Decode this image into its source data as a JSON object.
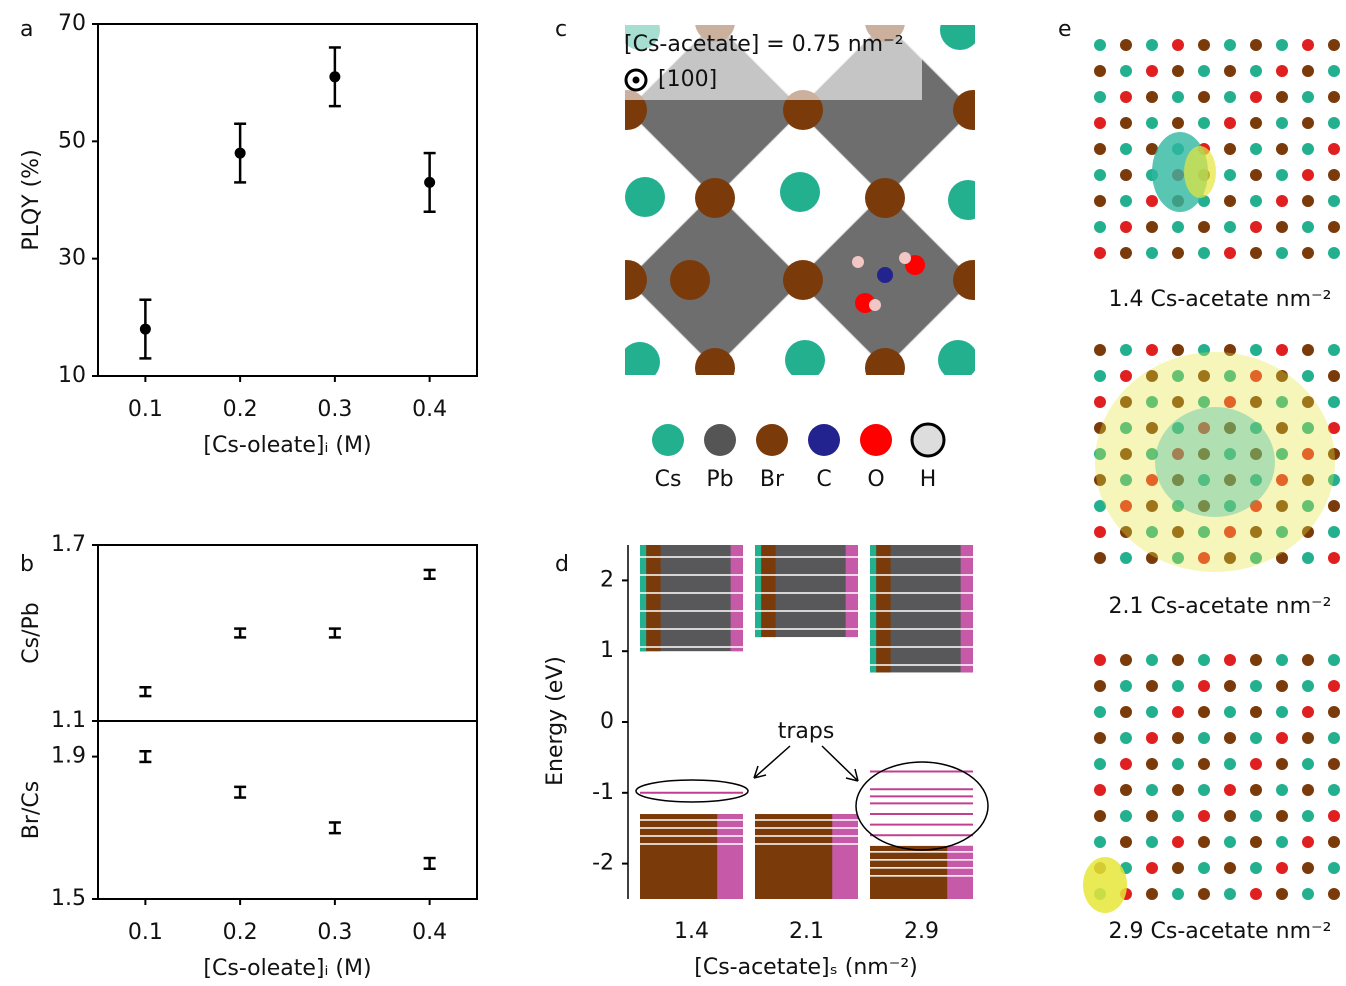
{
  "panel_labels": [
    "a",
    "b",
    "c",
    "d",
    "e"
  ],
  "chart_data": [
    {
      "type": "errorbar",
      "markers": true,
      "color": "#000000",
      "ylabel": "PLQY (%)",
      "xlabel": "[Cs-oleate]ᵢ (M)",
      "x": [
        0.1,
        0.2,
        0.3,
        0.4
      ],
      "values": [
        18,
        48,
        61,
        43
      ],
      "errors": [
        5,
        5,
        5,
        5
      ],
      "xlim": [
        0.05,
        0.45
      ],
      "xticks": [
        0.1,
        0.2,
        0.3,
        0.4
      ],
      "ylim": [
        10,
        70
      ],
      "yticks": [
        10,
        30,
        50,
        70
      ]
    },
    {
      "type": "errorbar",
      "markers": false,
      "color": "#000000",
      "ylabel": "Cs/Pb",
      "x": [
        0.1,
        0.2,
        0.3,
        0.4
      ],
      "values": [
        1.2,
        1.4,
        1.4,
        1.6
      ],
      "errors": [
        0.015,
        0.015,
        0.015,
        0.015
      ],
      "xlim": [
        0.05,
        0.45
      ],
      "ylim": [
        1.1,
        1.7
      ],
      "yticks": [
        1.1,
        1.7
      ]
    },
    {
      "type": "errorbar",
      "markers": false,
      "color": "#000000",
      "ylabel": "Br/Cs",
      "xlabel": "[Cs-oleate]ᵢ (M)",
      "x": [
        0.1,
        0.2,
        0.3,
        0.4
      ],
      "values": [
        1.9,
        1.8,
        1.7,
        1.6
      ],
      "errors": [
        0.015,
        0.015,
        0.015,
        0.015
      ],
      "xlim": [
        0.05,
        0.45
      ],
      "xticks": [
        0.1,
        0.2,
        0.3,
        0.4
      ],
      "ylim": [
        1.5,
        2.0
      ],
      "yticks": [
        1.5,
        1.9
      ]
    },
    {
      "type": "energy-levels",
      "ylabel": "Energy (eV)",
      "xlabel": "[Cs-acetate]ₛ (nm⁻²)",
      "categories": [
        "1.4",
        "2.1",
        "2.9"
      ],
      "conduction_band_min": [
        1.0,
        1.2,
        0.7
      ],
      "valence_band_max": [
        -1.3,
        -1.3,
        -1.75
      ],
      "trap_levels": [
        [
          -1.0
        ],
        [],
        [
          -0.7,
          -0.95,
          -1.05,
          -1.15,
          -1.3,
          -1.45,
          -1.6
        ]
      ],
      "ylim": [
        -2.5,
        2.5
      ],
      "yticks": [
        -2,
        -1,
        0,
        1,
        2
      ],
      "annotation": "traps"
    }
  ],
  "structure": {
    "caption": "[Cs-acetate] = 0.75 nm⁻²",
    "direction": "[100]",
    "legend": [
      {
        "name": "Cs",
        "color": "#22b08f"
      },
      {
        "name": "Pb",
        "color": "#555555"
      },
      {
        "name": "Br",
        "color": "#7a3a0a"
      },
      {
        "name": "C",
        "color": "#23238f"
      },
      {
        "name": "O",
        "color": "#ff0000"
      },
      {
        "name": "H",
        "color": "#dddddd"
      }
    ]
  },
  "orbitals": {
    "captions": [
      "1.4 Cs-acetate nm⁻²",
      "2.1 Cs-acetate nm⁻²",
      "2.9 Cs-acetate nm⁻²"
    ]
  }
}
